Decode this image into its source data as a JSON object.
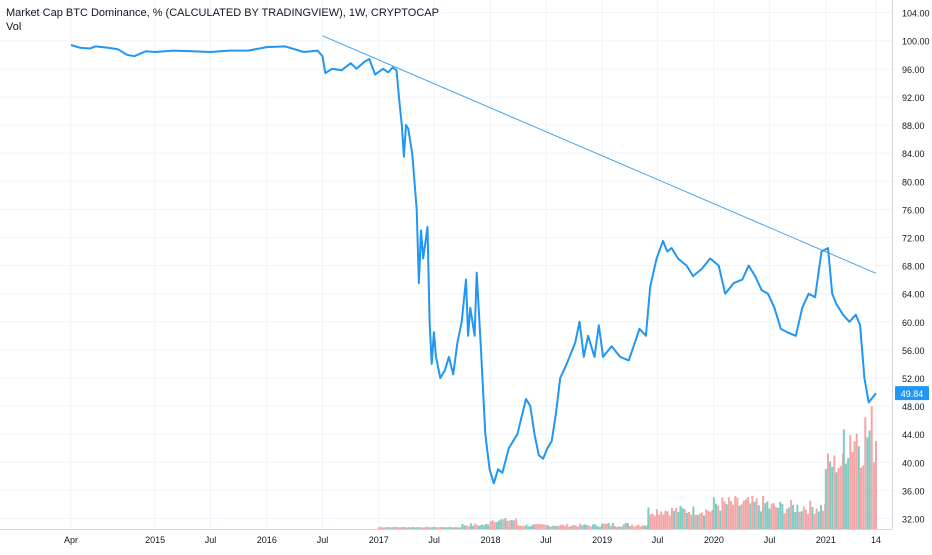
{
  "legend": {
    "title": "Market Cap BTC Dominance, % (CALCULATED BY TRADINGVIEW), 1W, CRYPTOCAP",
    "vol_label": "Vol"
  },
  "colors": {
    "line": "#2196F3",
    "trendline": "#4DA3E6",
    "vol_up": "#7FCBC4",
    "vol_down": "#F4A6A6",
    "grid": "#F0F3FA",
    "axis_text": "#131722",
    "price_tag_bg": "#2196F3"
  },
  "chart_data": {
    "type": "line",
    "x_axis": {
      "tick_labels": [
        "Apr",
        "2015",
        "Jul",
        "2016",
        "Jul",
        "2017",
        "Jul",
        "2018",
        "Jul",
        "2019",
        "Jul",
        "2020",
        "Jul",
        "2021",
        "14"
      ],
      "tick_dates": [
        "2014-04-01",
        "2015-01-01",
        "2015-07-01",
        "2016-01-01",
        "2016-07-01",
        "2017-01-01",
        "2017-07-01",
        "2018-01-01",
        "2018-07-01",
        "2019-01-01",
        "2019-07-01",
        "2020-01-01",
        "2020-07-01",
        "2021-01-01",
        "2021-06-14"
      ]
    },
    "y_axis": {
      "tick_labels": [
        "32.00",
        "36.00",
        "40.00",
        "44.00",
        "48.00",
        "52.00",
        "56.00",
        "60.00",
        "64.00",
        "68.00",
        "72.00",
        "76.00",
        "80.00",
        "84.00",
        "88.00",
        "92.00",
        "96.00",
        "100.00",
        "104.00"
      ],
      "ylim": [
        30.5,
        105.8
      ],
      "position": "right"
    },
    "grid": true,
    "last_value_label": "49.84",
    "series": [
      {
        "kind": "dominance_line",
        "points": [
          [
            "2014-04-01",
            99.4
          ],
          [
            "2014-05-01",
            99.0
          ],
          [
            "2014-06-01",
            98.9
          ],
          [
            "2014-06-20",
            99.2
          ],
          [
            "2014-08-01",
            99.0
          ],
          [
            "2014-09-01",
            98.8
          ],
          [
            "2014-10-01",
            98.0
          ],
          [
            "2014-10-25",
            97.8
          ],
          [
            "2014-12-01",
            98.5
          ],
          [
            "2015-01-01",
            98.4
          ],
          [
            "2015-03-01",
            98.6
          ],
          [
            "2015-05-01",
            98.5
          ],
          [
            "2015-07-01",
            98.4
          ],
          [
            "2015-09-01",
            98.6
          ],
          [
            "2015-11-01",
            98.6
          ],
          [
            "2016-01-01",
            99.1
          ],
          [
            "2016-03-01",
            99.2
          ],
          [
            "2016-05-01",
            98.4
          ],
          [
            "2016-06-15",
            98.6
          ],
          [
            "2016-07-01",
            97.8
          ],
          [
            "2016-07-10",
            95.4
          ],
          [
            "2016-08-01",
            96.0
          ],
          [
            "2016-09-01",
            95.8
          ],
          [
            "2016-10-01",
            96.8
          ],
          [
            "2016-10-20",
            96.0
          ],
          [
            "2016-11-15",
            97.0
          ],
          [
            "2016-12-01",
            97.4
          ],
          [
            "2016-12-20",
            95.2
          ],
          [
            "2017-01-15",
            96.0
          ],
          [
            "2017-02-01",
            95.5
          ],
          [
            "2017-02-15",
            96.2
          ],
          [
            "2017-02-28",
            95.8
          ],
          [
            "2017-03-10",
            91.0
          ],
          [
            "2017-03-17",
            88.0
          ],
          [
            "2017-03-24",
            83.5
          ],
          [
            "2017-03-31",
            88.0
          ],
          [
            "2017-04-07",
            87.5
          ],
          [
            "2017-04-20",
            84.0
          ],
          [
            "2017-05-05",
            76.0
          ],
          [
            "2017-05-12",
            65.5
          ],
          [
            "2017-05-19",
            73.0
          ],
          [
            "2017-05-26",
            69.0
          ],
          [
            "2017-06-09",
            73.5
          ],
          [
            "2017-06-16",
            60.0
          ],
          [
            "2017-06-23",
            54.0
          ],
          [
            "2017-06-30",
            58.5
          ],
          [
            "2017-07-07",
            55.0
          ],
          [
            "2017-07-21",
            52.0
          ],
          [
            "2017-08-04",
            53.0
          ],
          [
            "2017-08-18",
            55.0
          ],
          [
            "2017-09-01",
            52.5
          ],
          [
            "2017-09-15",
            57.0
          ],
          [
            "2017-09-29",
            60.0
          ],
          [
            "2017-10-13",
            66.0
          ],
          [
            "2017-10-20",
            58.0
          ],
          [
            "2017-10-27",
            62.0
          ],
          [
            "2017-11-10",
            58.0
          ],
          [
            "2017-11-17",
            67.0
          ],
          [
            "2017-12-01",
            56.0
          ],
          [
            "2017-12-15",
            44.0
          ],
          [
            "2017-12-29",
            39.0
          ],
          [
            "2018-01-12",
            37.0
          ],
          [
            "2018-01-26",
            39.0
          ],
          [
            "2018-02-09",
            38.5
          ],
          [
            "2018-03-02",
            42.0
          ],
          [
            "2018-03-30",
            44.0
          ],
          [
            "2018-04-27",
            49.0
          ],
          [
            "2018-05-11",
            48.0
          ],
          [
            "2018-05-25",
            44.0
          ],
          [
            "2018-06-08",
            41.0
          ],
          [
            "2018-06-22",
            40.5
          ],
          [
            "2018-07-06",
            42.0
          ],
          [
            "2018-07-20",
            43.0
          ],
          [
            "2018-08-03",
            47.0
          ],
          [
            "2018-08-17",
            52.0
          ],
          [
            "2018-09-07",
            54.0
          ],
          [
            "2018-10-05",
            57.0
          ],
          [
            "2018-10-19",
            60.0
          ],
          [
            "2018-11-02",
            55.0
          ],
          [
            "2018-11-16",
            58.0
          ],
          [
            "2018-12-07",
            55.0
          ],
          [
            "2018-12-21",
            59.5
          ],
          [
            "2019-01-04",
            55.0
          ],
          [
            "2019-02-01",
            56.5
          ],
          [
            "2019-03-01",
            55.0
          ],
          [
            "2019-03-29",
            54.5
          ],
          [
            "2019-05-03",
            59.0
          ],
          [
            "2019-05-24",
            58.0
          ],
          [
            "2019-06-07",
            65.0
          ],
          [
            "2019-06-28",
            69.0
          ],
          [
            "2019-07-19",
            71.5
          ],
          [
            "2019-08-02",
            70.0
          ],
          [
            "2019-08-16",
            70.5
          ],
          [
            "2019-09-06",
            69.0
          ],
          [
            "2019-10-04",
            68.0
          ],
          [
            "2019-10-25",
            66.5
          ],
          [
            "2019-11-22",
            67.5
          ],
          [
            "2019-12-20",
            69.0
          ],
          [
            "2020-01-17",
            68.0
          ],
          [
            "2020-02-07",
            64.0
          ],
          [
            "2020-03-06",
            65.5
          ],
          [
            "2020-04-03",
            66.0
          ],
          [
            "2020-04-24",
            68.0
          ],
          [
            "2020-05-15",
            66.5
          ],
          [
            "2020-06-05",
            64.5
          ],
          [
            "2020-06-26",
            64.0
          ],
          [
            "2020-07-17",
            62.0
          ],
          [
            "2020-08-07",
            59.0
          ],
          [
            "2020-08-28",
            58.5
          ],
          [
            "2020-09-25",
            58.0
          ],
          [
            "2020-10-16",
            62.0
          ],
          [
            "2020-11-06",
            64.0
          ],
          [
            "2020-11-27",
            63.5
          ],
          [
            "2020-12-18",
            70.0
          ],
          [
            "2021-01-08",
            70.5
          ],
          [
            "2021-01-22",
            64.0
          ],
          [
            "2021-02-05",
            62.5
          ],
          [
            "2021-02-26",
            61.0
          ],
          [
            "2021-03-19",
            60.0
          ],
          [
            "2021-04-09",
            61.0
          ],
          [
            "2021-04-23",
            59.5
          ],
          [
            "2021-05-07",
            52.0
          ],
          [
            "2021-05-21",
            48.5
          ],
          [
            "2021-06-14",
            49.84
          ]
        ]
      },
      {
        "kind": "trendline",
        "points": [
          [
            "2016-07-01",
            100.7
          ],
          [
            "2021-06-14",
            66.9
          ]
        ]
      }
    ],
    "volume": [
      {
        "start": "2017-01-01",
        "end": "2017-09-30",
        "min": 0.2,
        "max": 0.3
      },
      {
        "start": "2017-10-01",
        "end": "2017-12-31",
        "min": 0.3,
        "max": 0.8
      },
      {
        "start": "2018-01-01",
        "end": "2018-03-31",
        "min": 0.9,
        "max": 1.5
      },
      {
        "start": "2018-04-01",
        "end": "2018-12-31",
        "min": 0.3,
        "max": 0.7
      },
      {
        "start": "2019-01-01",
        "end": "2019-05-31",
        "min": 0.3,
        "max": 0.9
      },
      {
        "start": "2019-06-01",
        "end": "2019-12-31",
        "min": 1.8,
        "max": 3.2
      },
      {
        "start": "2020-01-01",
        "end": "2020-06-30",
        "min": 2.2,
        "max": 4.5
      },
      {
        "start": "2020-07-01",
        "end": "2020-12-31",
        "min": 2.0,
        "max": 3.9
      },
      {
        "start": "2021-01-01",
        "end": "2021-02-28",
        "min": 7.0,
        "max": 10.5
      },
      {
        "start": "2021-03-01",
        "end": "2021-06-14",
        "min": 8.0,
        "max": 17.5
      }
    ]
  }
}
